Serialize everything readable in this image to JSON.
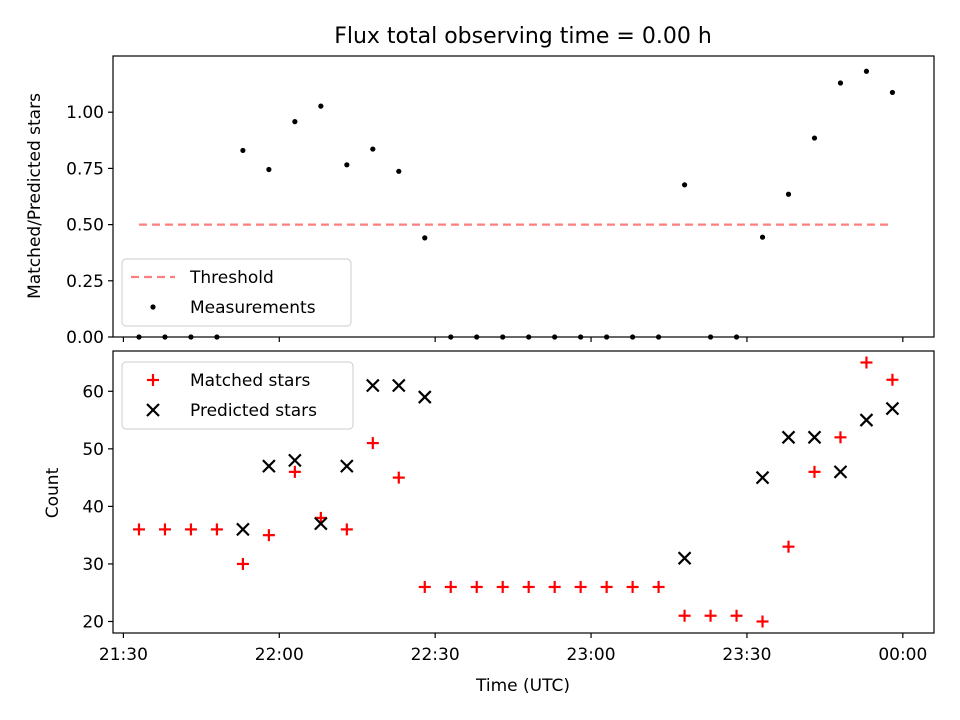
{
  "figure": {
    "title": "Flux total observing time = 0.00 h",
    "xlabel": "Time (UTC)"
  },
  "colors": {
    "threshold": "#ff7f7f",
    "measurements": "#000000",
    "matched": "#ff0000",
    "predicted": "#000000"
  },
  "chart_data": [
    {
      "type": "scatter",
      "ylabel": "Matched/Predicted stars",
      "ylim": [
        0.0,
        1.25
      ],
      "yticks": [
        0.0,
        0.25,
        0.5,
        0.75,
        1.0
      ],
      "ytick_labels": [
        "0.00",
        "0.25",
        "0.50",
        "0.75",
        "1.00"
      ],
      "legend": {
        "placement": "lower-left",
        "entries": [
          "Threshold",
          "Measurements"
        ]
      },
      "threshold": {
        "name": "Threshold",
        "y": 0.5,
        "x_start": "21:33",
        "x_end": "23:58"
      },
      "series": [
        {
          "name": "Measurements",
          "x": [
            "21:33",
            "21:38",
            "21:43",
            "21:48",
            "21:53",
            "21:58",
            "22:03",
            "22:08",
            "22:13",
            "22:18",
            "22:23",
            "22:28",
            "22:33",
            "22:38",
            "22:43",
            "22:48",
            "22:53",
            "22:58",
            "23:03",
            "23:08",
            "23:13",
            "23:18",
            "23:23",
            "23:28",
            "23:33",
            "23:38",
            "23:43",
            "23:48",
            "23:53",
            "23:58"
          ],
          "y": [
            0.0,
            0.0,
            0.0,
            0.0,
            0.83,
            0.745,
            0.958,
            1.027,
            0.766,
            0.836,
            0.737,
            0.441,
            0.0,
            0.0,
            0.0,
            0.0,
            0.0,
            0.0,
            0.0,
            0.0,
            0.0,
            0.677,
            0.0,
            0.0,
            0.444,
            0.635,
            0.885,
            1.13,
            1.182,
            1.088
          ]
        }
      ]
    },
    {
      "type": "scatter",
      "ylabel": "Count",
      "xlabel": "Time (UTC)",
      "ylim": [
        18,
        67
      ],
      "yticks": [
        20,
        30,
        40,
        50,
        60
      ],
      "xlim": [
        "21:28",
        "00:06"
      ],
      "xticks": [
        "21:30",
        "22:00",
        "22:30",
        "23:00",
        "23:30",
        "00:00"
      ],
      "legend": {
        "placement": "top-left",
        "entries": [
          "Matched stars",
          "Predicted stars"
        ]
      },
      "series": [
        {
          "name": "Matched stars",
          "x": [
            "21:33",
            "21:38",
            "21:43",
            "21:48",
            "21:53",
            "21:58",
            "22:03",
            "22:08",
            "22:13",
            "22:18",
            "22:23",
            "22:28",
            "22:33",
            "22:38",
            "22:43",
            "22:48",
            "22:53",
            "22:58",
            "23:03",
            "23:08",
            "23:13",
            "23:18",
            "23:23",
            "23:28",
            "23:33",
            "23:38",
            "23:43",
            "23:48",
            "23:53",
            "23:58"
          ],
          "y": [
            36,
            36,
            36,
            36,
            30,
            35,
            46,
            38,
            36,
            51,
            45,
            26,
            26,
            26,
            26,
            26,
            26,
            26,
            26,
            26,
            26,
            21,
            21,
            21,
            20,
            33,
            46,
            52,
            65,
            62
          ]
        },
        {
          "name": "Predicted stars",
          "x": [
            "21:53",
            "21:58",
            "22:03",
            "22:08",
            "22:13",
            "22:18",
            "22:23",
            "22:28",
            "23:18",
            "23:33",
            "23:38",
            "23:43",
            "23:48",
            "23:53",
            "23:58"
          ],
          "y": [
            36,
            47,
            48,
            37,
            47,
            61,
            61,
            59,
            31,
            45,
            52,
            52,
            46,
            55,
            57
          ]
        }
      ]
    }
  ]
}
